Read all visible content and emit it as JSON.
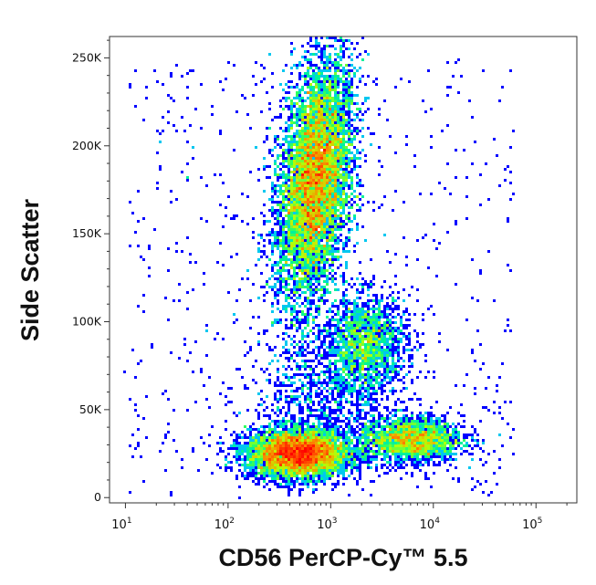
{
  "chart_data": {
    "type": "scatter",
    "title": "",
    "xlabel": "CD56 PerCP-Cy™ 5.5",
    "ylabel": "Side Scatter",
    "x_scale": "log",
    "xlim": [
      7,
      250000
    ],
    "ylim": [
      -3000,
      262144
    ],
    "x_ticks": [
      {
        "value": 10,
        "base": "10",
        "exp": "1"
      },
      {
        "value": 100,
        "base": "10",
        "exp": "2"
      },
      {
        "value": 1000,
        "base": "10",
        "exp": "3"
      },
      {
        "value": 10000,
        "base": "10",
        "exp": "4"
      },
      {
        "value": 100000,
        "base": "10",
        "exp": "5"
      }
    ],
    "y_ticks": [
      {
        "value": 0,
        "label": "0"
      },
      {
        "value": 50000,
        "label": "50K"
      },
      {
        "value": 100000,
        "label": "100K"
      },
      {
        "value": 150000,
        "label": "150K"
      },
      {
        "value": 200000,
        "label": "200K"
      },
      {
        "value": 250000,
        "label": "250K"
      }
    ],
    "grid": false,
    "color_scale": [
      "#0000ff",
      "#00bfff",
      "#00ff80",
      "#c0ff00",
      "#ff8000",
      "#ff0000"
    ],
    "populations": [
      {
        "x": 700,
        "y": 180000,
        "count": 9500
      },
      {
        "x": 2200,
        "y": 88000,
        "count": 1800
      },
      {
        "x": 480,
        "y": 25000,
        "count": 5200
      },
      {
        "x": 6000,
        "y": 33000,
        "count": 2200
      },
      {
        "x": 900,
        "y": 60000,
        "count": 900
      }
    ]
  }
}
